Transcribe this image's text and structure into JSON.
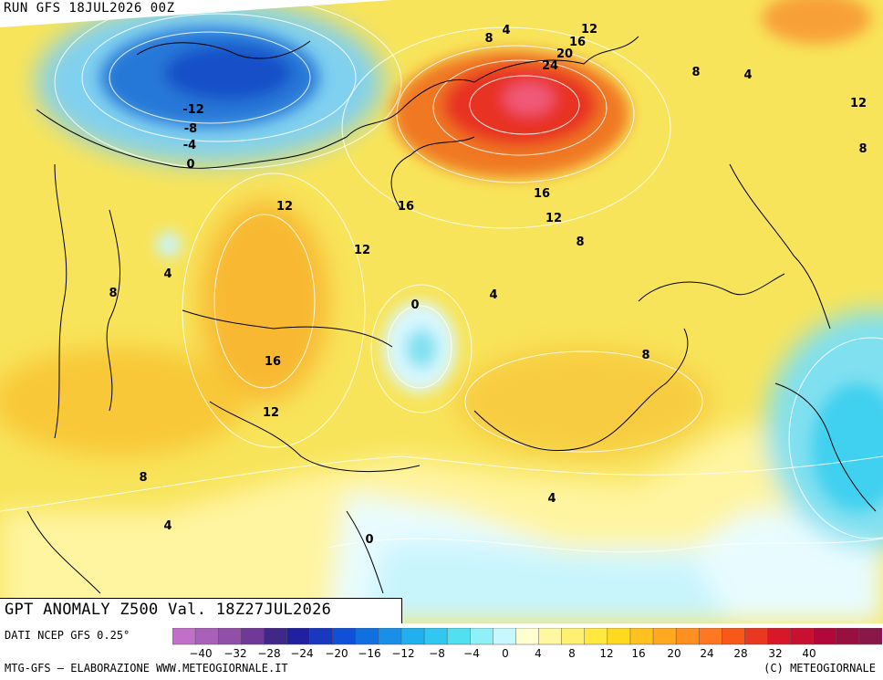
{
  "header": {
    "run_label": "RUN GFS 18JUL2026 00Z"
  },
  "map": {
    "title": "GPT ANOMALY Z500 Val. 18Z27JUL2026",
    "contour_labels": [
      {
        "text": "4",
        "value": 4
      },
      {
        "text": "8",
        "value": 8
      },
      {
        "text": "12",
        "value": 12
      },
      {
        "text": "16",
        "value": 16
      },
      {
        "text": "20",
        "value": 20
      },
      {
        "text": "24",
        "value": 24
      },
      {
        "text": "8",
        "value": 8
      },
      {
        "text": "4",
        "value": 4
      },
      {
        "text": "12",
        "value": 12
      },
      {
        "text": "8",
        "value": 8
      },
      {
        "text": "-12",
        "value": -12
      },
      {
        "text": "-8",
        "value": -8
      },
      {
        "text": "-4",
        "value": -4
      },
      {
        "text": "0",
        "value": 0
      },
      {
        "text": "12",
        "value": 12
      },
      {
        "text": "16",
        "value": 16
      },
      {
        "text": "16",
        "value": 16
      },
      {
        "text": "12",
        "value": 12
      },
      {
        "text": "12",
        "value": 12
      },
      {
        "text": "8",
        "value": 8
      },
      {
        "text": "4",
        "value": 4
      },
      {
        "text": "8",
        "value": 8
      },
      {
        "text": "0",
        "value": 0
      },
      {
        "text": "4",
        "value": 4
      },
      {
        "text": "16",
        "value": 16
      },
      {
        "text": "8",
        "value": 8
      },
      {
        "text": "12",
        "value": 12
      },
      {
        "text": "8",
        "value": 8
      },
      {
        "text": "4",
        "value": 4
      },
      {
        "text": "4",
        "value": 4
      },
      {
        "text": "0",
        "value": 0
      }
    ]
  },
  "legend": {
    "source": "DATI NCEP GFS 0.25°",
    "credit_left": "MTG-GFS — ELABORAZIONE WWW.METEOGIORNALE.IT",
    "credit_right": "(C) METEOGIORNALE",
    "tick_labels": [
      "-40",
      "-32",
      "-28",
      "-24",
      "-20",
      "-16",
      "-12",
      "-8",
      "-4",
      "0",
      "4",
      "8",
      "12",
      "16",
      "20",
      "24",
      "28",
      "32",
      "40"
    ],
    "colors": [
      "#c070c8",
      "#a860b8",
      "#9050a8",
      "#703898",
      "#402888",
      "#2020a0",
      "#1838c0",
      "#1050d8",
      "#1070e0",
      "#1890e8",
      "#20b0f0",
      "#30c8f0",
      "#50e0f0",
      "#90f0f8",
      "#c8f8ff",
      "#ffffd0",
      "#fff8a0",
      "#fff070",
      "#ffe840",
      "#ffd820",
      "#ffc020",
      "#ffa820",
      "#ff9020",
      "#ff7820",
      "#f85818",
      "#e83820",
      "#d81828",
      "#c81030",
      "#b00838",
      "#981040",
      "#881848"
    ]
  }
}
